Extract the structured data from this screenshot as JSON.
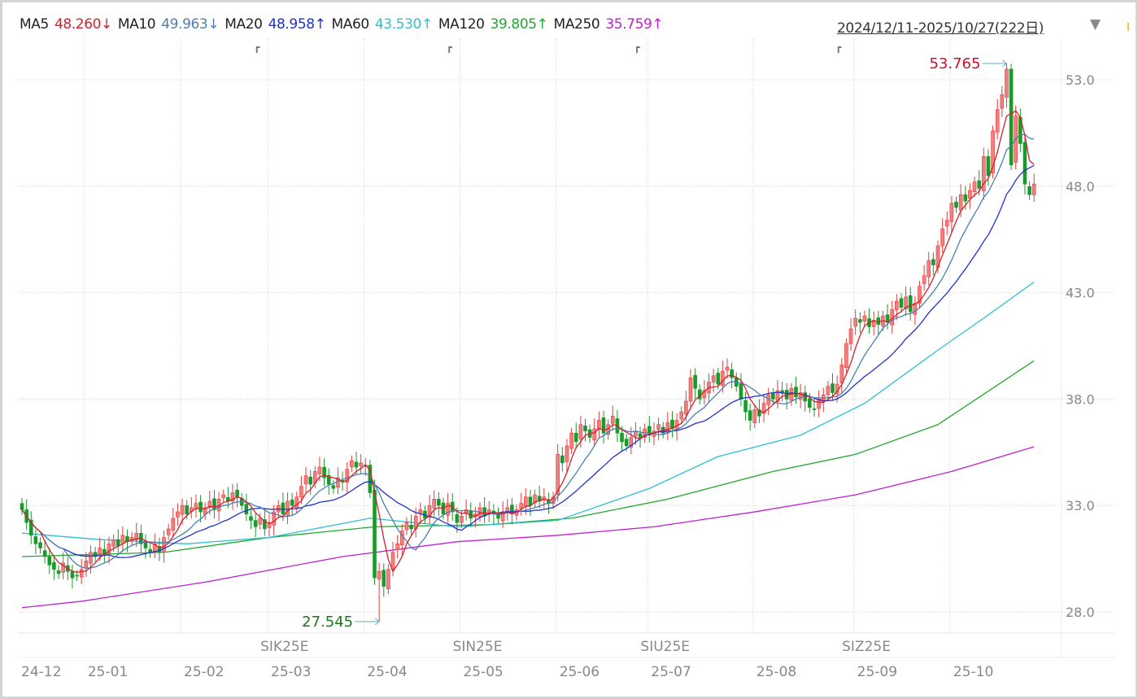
{
  "header": {
    "ma_items": [
      {
        "label": "MA5",
        "value": "48.260↓",
        "color": "#d4202c"
      },
      {
        "label": "MA10",
        "value": "49.963↓",
        "color": "#4a7fb0"
      },
      {
        "label": "MA20",
        "value": "48.958↑",
        "color": "#2030d0"
      },
      {
        "label": "MA60",
        "value": "43.530↑",
        "color": "#30c0d0"
      },
      {
        "label": "MA120",
        "value": "39.805↑",
        "color": "#20a830"
      },
      {
        "label": "MA250",
        "value": "35.759↑",
        "color": "#c020d0"
      }
    ],
    "date_range": "2024/12/11-2025/10/27(222日)",
    "dropdown_icon": "triangle-down-icon"
  },
  "chart_data": {
    "type": "candlestick",
    "title": "",
    "ylim": [
      27,
      54.5
    ],
    "y_ticks": [
      "28.0",
      "33.0",
      "38.0",
      "43.0",
      "48.0",
      "53.0"
    ],
    "grid": true,
    "colors": {
      "up": "#e23c3c",
      "up_fill": "#f08080",
      "down": "#1a9a2a",
      "ma5": "#d4202c",
      "ma10": "#4a7fb0",
      "ma20": "#2030d0",
      "ma60": "#30c0d0",
      "ma120": "#20a830",
      "ma250": "#c020d0"
    },
    "month_labels": [
      {
        "label": "24-12",
        "bar": 0
      },
      {
        "label": "25-01",
        "bar": 14
      },
      {
        "label": "25-02",
        "bar": 35
      },
      {
        "label": "25-03",
        "bar": 54
      },
      {
        "label": "25-04",
        "bar": 75
      },
      {
        "label": "25-05",
        "bar": 96
      },
      {
        "label": "25-06",
        "bar": 117
      },
      {
        "label": "25-07",
        "bar": 137
      },
      {
        "label": "25-08",
        "bar": 160
      },
      {
        "label": "25-09",
        "bar": 182
      },
      {
        "label": "25-10",
        "bar": 203
      }
    ],
    "contract_labels": [
      {
        "label": "SIK25E",
        "bar": 51
      },
      {
        "label": "SIN25E",
        "bar": 93
      },
      {
        "label": "SIU25E",
        "bar": 134
      },
      {
        "label": "SIZ25E",
        "bar": 178
      }
    ],
    "annotations": [
      {
        "label": "53.765",
        "bar": 215,
        "type": "high",
        "value": 53.765
      },
      {
        "label": "27.545",
        "bar": 78,
        "type": "low",
        "value": 27.545
      }
    ],
    "close": [
      32.8,
      32.2,
      31.6,
      31.2,
      31.0,
      30.6,
      30.2,
      30.0,
      29.8,
      30.3,
      29.9,
      29.6,
      29.7,
      30.0,
      30.4,
      30.8,
      30.6,
      31.0,
      30.7,
      31.2,
      31.4,
      31.1,
      31.6,
      31.3,
      31.5,
      31.7,
      31.2,
      31.0,
      30.8,
      31.2,
      30.8,
      31.5,
      31.9,
      32.4,
      32.7,
      33.0,
      32.6,
      32.9,
      33.1,
      32.7,
      32.9,
      33.2,
      32.8,
      33.3,
      33.5,
      33.2,
      33.6,
      33.4,
      33.0,
      32.6,
      32.3,
      32.0,
      32.4,
      31.9,
      32.2,
      32.7,
      33.0,
      32.6,
      33.2,
      33.0,
      33.4,
      33.9,
      34.4,
      34.0,
      34.6,
      34.8,
      34.3,
      34.0,
      33.8,
      34.3,
      34.1,
      34.7,
      35.1,
      34.8,
      35.0,
      34.9,
      33.6,
      29.6,
      29.9,
      29.2,
      30.0,
      30.8,
      31.2,
      31.8,
      32.2,
      31.9,
      32.5,
      32.8,
      32.4,
      33.0,
      33.3,
      33.0,
      32.6,
      33.1,
      32.7,
      32.2,
      32.5,
      32.8,
      32.4,
      32.6,
      32.9,
      32.5,
      32.8,
      32.6,
      32.4,
      32.7,
      32.9,
      32.6,
      32.8,
      33.1,
      33.4,
      33.0,
      33.5,
      33.2,
      33.4,
      33.1,
      33.4,
      35.4,
      35.0,
      35.8,
      36.4,
      36.0,
      36.8,
      36.5,
      36.2,
      36.6,
      37.0,
      36.4,
      36.8,
      37.2,
      36.4,
      36.0,
      35.8,
      36.2,
      36.5,
      36.2,
      36.6,
      36.3,
      36.5,
      36.8,
      36.4,
      36.9,
      36.6,
      37.0,
      37.4,
      37.9,
      39.0,
      38.5,
      38.0,
      38.4,
      38.8,
      39.1,
      38.7,
      39.3,
      39.5,
      39.0,
      38.6,
      38.0,
      37.4,
      37.0,
      37.5,
      37.2,
      37.8,
      38.2,
      38.0,
      38.4,
      38.3,
      38.0,
      38.5,
      38.1,
      38.3,
      37.9,
      37.6,
      37.5,
      38.0,
      38.2,
      38.6,
      38.3,
      38.7,
      39.6,
      40.6,
      41.3,
      41.8,
      41.6,
      41.9,
      41.4,
      41.7,
      41.5,
      41.9,
      41.6,
      42.2,
      42.6,
      42.3,
      42.8,
      42.1,
      42.5,
      43.3,
      43.8,
      44.5,
      44.3,
      45.2,
      46.0,
      46.4,
      47.2,
      47.0,
      47.6,
      47.3,
      47.8,
      48.2,
      47.9,
      49.4,
      48.5,
      50.6,
      51.6,
      52.3,
      53.5,
      49.0,
      51.3,
      50.0,
      48.1,
      47.6,
      48.1
    ],
    "ma_long": {
      "ma60": [
        [
          0,
          31.7
        ],
        [
          17,
          31.4
        ],
        [
          36,
          31.2
        ],
        [
          54,
          31.5
        ],
        [
          76,
          32.4
        ],
        [
          95,
          32.0
        ],
        [
          117,
          32.3
        ],
        [
          137,
          33.8
        ],
        [
          152,
          35.3
        ],
        [
          170,
          36.3
        ],
        [
          184,
          37.8
        ],
        [
          200,
          40.3
        ],
        [
          210,
          41.8
        ],
        [
          221,
          43.5
        ]
      ],
      "ma120": [
        [
          0,
          30.6
        ],
        [
          31,
          30.8
        ],
        [
          54,
          31.5
        ],
        [
          77,
          32.0
        ],
        [
          102,
          32.1
        ],
        [
          120,
          32.4
        ],
        [
          141,
          33.3
        ],
        [
          164,
          34.6
        ],
        [
          182,
          35.4
        ],
        [
          200,
          36.8
        ],
        [
          221,
          39.8
        ]
      ],
      "ma250": [
        [
          0,
          28.2
        ],
        [
          13,
          28.5
        ],
        [
          40,
          29.4
        ],
        [
          70,
          30.6
        ],
        [
          95,
          31.3
        ],
        [
          117,
          31.6
        ],
        [
          138,
          32.0
        ],
        [
          160,
          32.7
        ],
        [
          182,
          33.5
        ],
        [
          203,
          34.6
        ],
        [
          221,
          35.76
        ]
      ]
    }
  }
}
